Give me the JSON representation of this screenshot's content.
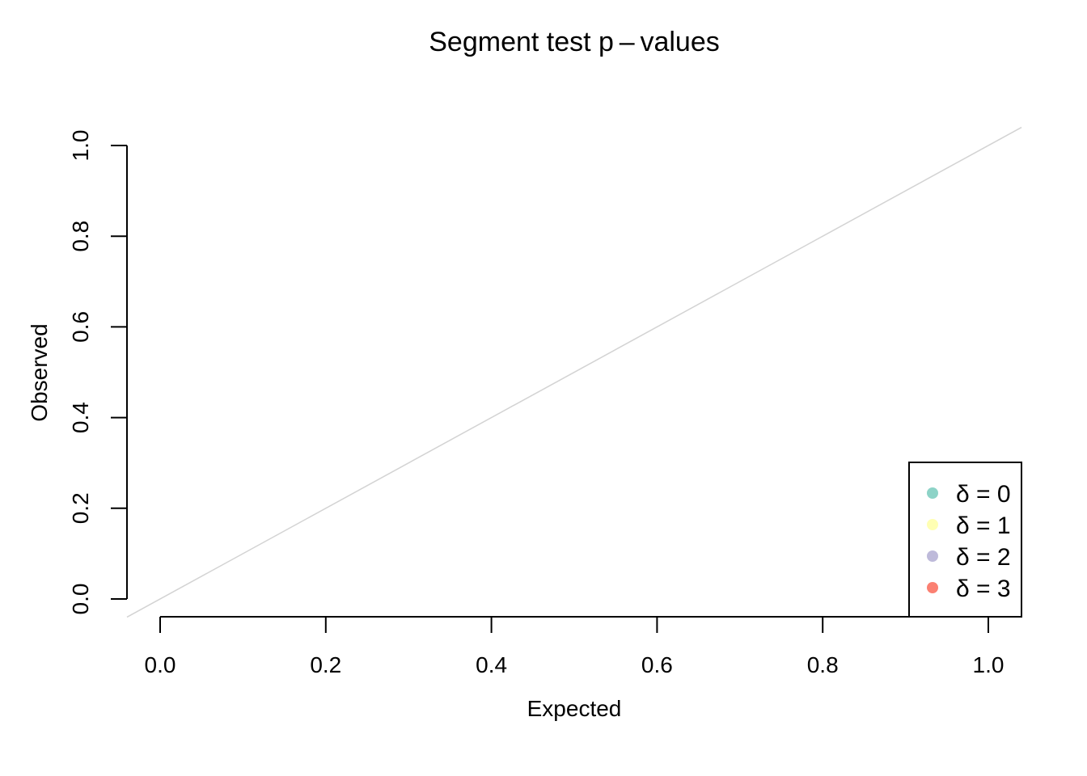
{
  "chart_data": {
    "type": "scatter",
    "title": "Segment test p – values",
    "xlabel": "Expected",
    "ylabel": "Observed",
    "xlim": [
      0,
      1
    ],
    "ylim": [
      0,
      1
    ],
    "x_ticks": [
      "0.0",
      "0.2",
      "0.4",
      "0.6",
      "0.8",
      "1.0"
    ],
    "y_ticks": [
      "0.0",
      "0.2",
      "0.4",
      "0.6",
      "0.8",
      "1.0"
    ],
    "reference_line": {
      "type": "identity",
      "slope": 1,
      "intercept": 0,
      "color": "#d3d3d3"
    },
    "grid": false,
    "legend": {
      "position": "bottom-right",
      "entries": [
        {
          "label": "δ = 0",
          "color": "#8dd3c7"
        },
        {
          "label": "δ = 1",
          "color": "#ffffb3"
        },
        {
          "label": "δ = 2",
          "color": "#bebada"
        },
        {
          "label": "δ = 3",
          "color": "#fb8072"
        }
      ]
    },
    "series": []
  }
}
